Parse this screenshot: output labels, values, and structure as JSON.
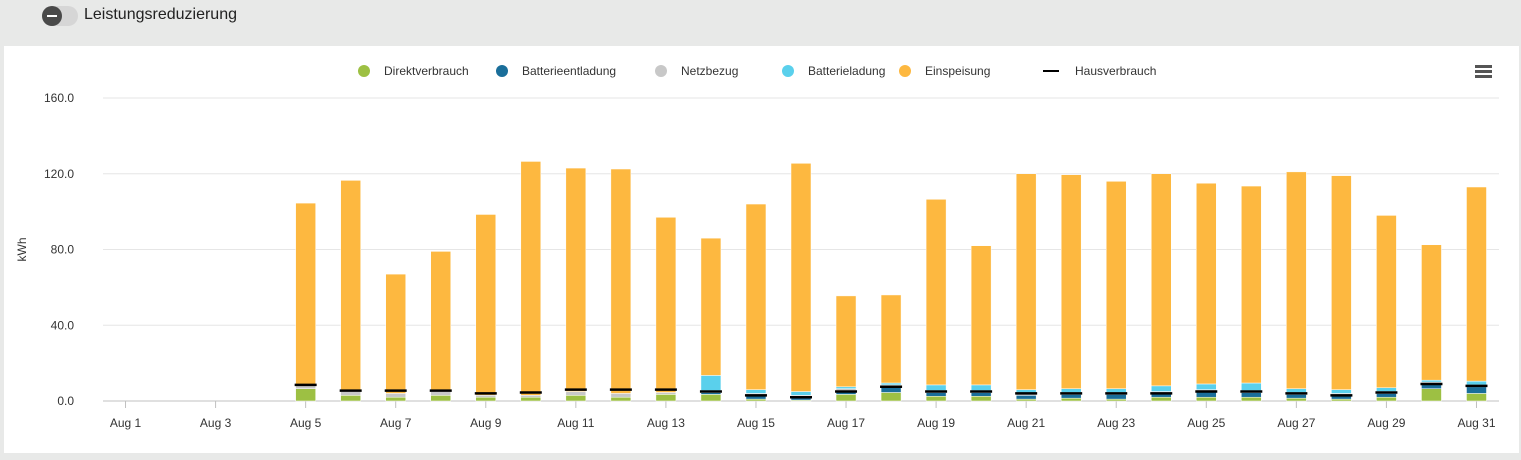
{
  "toggle": {
    "label": "Leistungsreduzierung",
    "state": "off"
  },
  "menu_icon": "hamburger-menu-icon",
  "colors": {
    "Batterieladung": "#5ad0ec",
    "Batterieentladung": "#1a6e9a",
    "Einspeisung": "#fdb840",
    "Netzbezug": "#c8c8c8",
    "Direktverbrauch": "#9dc043",
    "Hausverbrauch": "#000000"
  },
  "chart_data": {
    "type": "bar",
    "stacked": true,
    "ylabel": "kWh",
    "ylim": [
      0,
      160
    ],
    "yticks": [
      "0.0",
      "40.0",
      "80.0",
      "120.0",
      "160.0"
    ],
    "grid": true,
    "legend_position": "top-center",
    "categories": [
      "Aug 1",
      "Aug 2",
      "Aug 3",
      "Aug 4",
      "Aug 5",
      "Aug 6",
      "Aug 7",
      "Aug 8",
      "Aug 9",
      "Aug 10",
      "Aug 11",
      "Aug 12",
      "Aug 13",
      "Aug 14",
      "Aug 15",
      "Aug 16",
      "Aug 17",
      "Aug 18",
      "Aug 19",
      "Aug 20",
      "Aug 21",
      "Aug 22",
      "Aug 23",
      "Aug 24",
      "Aug 25",
      "Aug 26",
      "Aug 27",
      "Aug 28",
      "Aug 29",
      "Aug 30",
      "Aug 31"
    ],
    "xtick_labels": [
      "Aug 1",
      "Aug 3",
      "Aug 5",
      "Aug 7",
      "Aug 9",
      "Aug 11",
      "Aug 13",
      "Aug 15",
      "Aug 17",
      "Aug 19",
      "Aug 21",
      "Aug 23",
      "Aug 25",
      "Aug 27",
      "Aug 29",
      "Aug 31"
    ],
    "series": [
      {
        "name": "Direktverbrauch",
        "values": [
          0,
          0,
          0,
          0,
          6.5,
          3,
          2,
          3,
          2,
          2,
          3,
          2,
          3.5,
          3.5,
          1,
          0.5,
          3.5,
          4.5,
          2.5,
          2.5,
          1,
          1.5,
          1,
          2,
          2,
          2,
          1.5,
          1,
          2,
          6.5,
          4
        ]
      },
      {
        "name": "Batterieentladung",
        "values": [
          0,
          0,
          0,
          0,
          0,
          0,
          0,
          0,
          0,
          0,
          0,
          0,
          0,
          1,
          2,
          1.5,
          2,
          3,
          2,
          2,
          2,
          2,
          2.5,
          2,
          3,
          2.5,
          2,
          2,
          2,
          2.5,
          3.5
        ]
      },
      {
        "name": "Netzbezug",
        "values": [
          0,
          0,
          0,
          0,
          2,
          2,
          2,
          2,
          1,
          1,
          2,
          2,
          1,
          1,
          1,
          1,
          1,
          1,
          1,
          1,
          1,
          1,
          1,
          1,
          1,
          1,
          1,
          1,
          1,
          1,
          1
        ]
      },
      {
        "name": "Batterieladung",
        "values": [
          0,
          0,
          0,
          0,
          0,
          0,
          0,
          0,
          0,
          0,
          0,
          0,
          0,
          8,
          2,
          2,
          1,
          1,
          3,
          3,
          2,
          2,
          2,
          3,
          3,
          4,
          2,
          2,
          2,
          1,
          2
        ]
      },
      {
        "name": "Einspeisung",
        "values": [
          0,
          0,
          0,
          0,
          96,
          111.5,
          63,
          74,
          95.5,
          123.5,
          118,
          118.5,
          92.5,
          72.5,
          98,
          120.5,
          48,
          46.5,
          98,
          73.5,
          114,
          113,
          109.5,
          112,
          106,
          104,
          114.5,
          113,
          91,
          71.5,
          102.5
        ]
      },
      {
        "name": "Hausverbrauch",
        "type": "line",
        "values": [
          0,
          0,
          0,
          0,
          8.5,
          5.5,
          5.5,
          5.5,
          4,
          4.5,
          6,
          6,
          6,
          5,
          3,
          2,
          5,
          7.5,
          5,
          5,
          4,
          4,
          4,
          4,
          5,
          5,
          4,
          3,
          4.5,
          9,
          8
        ]
      }
    ]
  }
}
